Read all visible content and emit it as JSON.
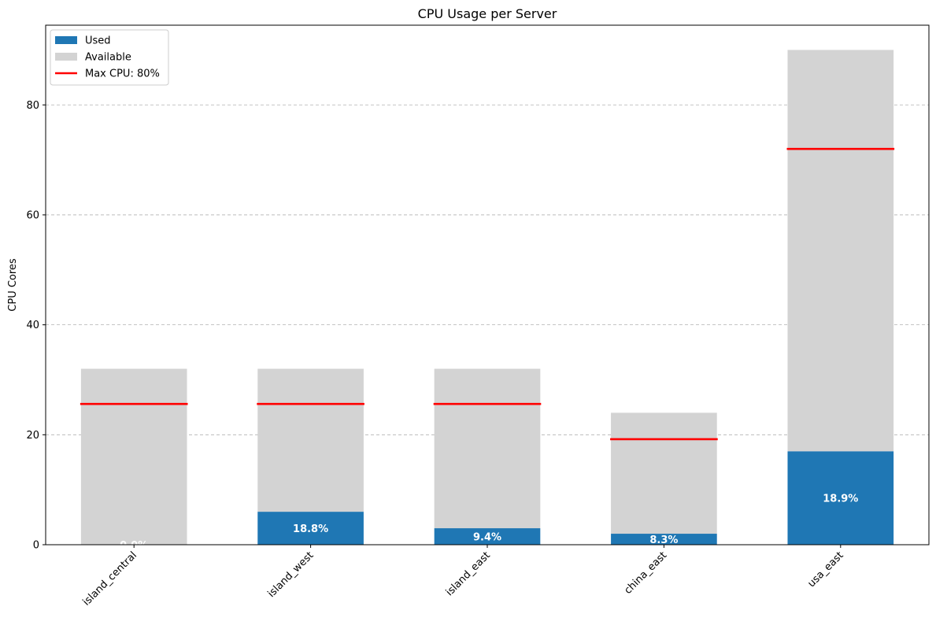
{
  "chart_data": {
    "type": "bar",
    "title": "CPU Usage per Server",
    "xlabel": "",
    "ylabel": "CPU Cores",
    "categories": [
      "island_central",
      "island_west",
      "island_east",
      "china_east",
      "usa_east"
    ],
    "series": [
      {
        "name": "Used",
        "values": [
          0,
          6,
          3,
          2,
          17
        ],
        "color": "#1f77b4"
      },
      {
        "name": "Available",
        "values": [
          32,
          26,
          29,
          22,
          73
        ],
        "color": "#d3d3d3"
      }
    ],
    "totals": [
      32,
      32,
      32,
      24,
      90
    ],
    "max_cpu": {
      "name": "Max CPU: 80%",
      "fraction": 0.8,
      "values": [
        25.6,
        25.6,
        25.6,
        19.2,
        72
      ],
      "color": "#ff0000"
    },
    "data_labels": [
      "0.0%",
      "18.8%",
      "9.4%",
      "8.3%",
      "18.9%"
    ],
    "ylim": [
      0,
      94.5
    ],
    "yticks": [
      0,
      20,
      40,
      60,
      80
    ],
    "grid": "y, dashed",
    "legend_position": "top-left",
    "stacked": true
  }
}
